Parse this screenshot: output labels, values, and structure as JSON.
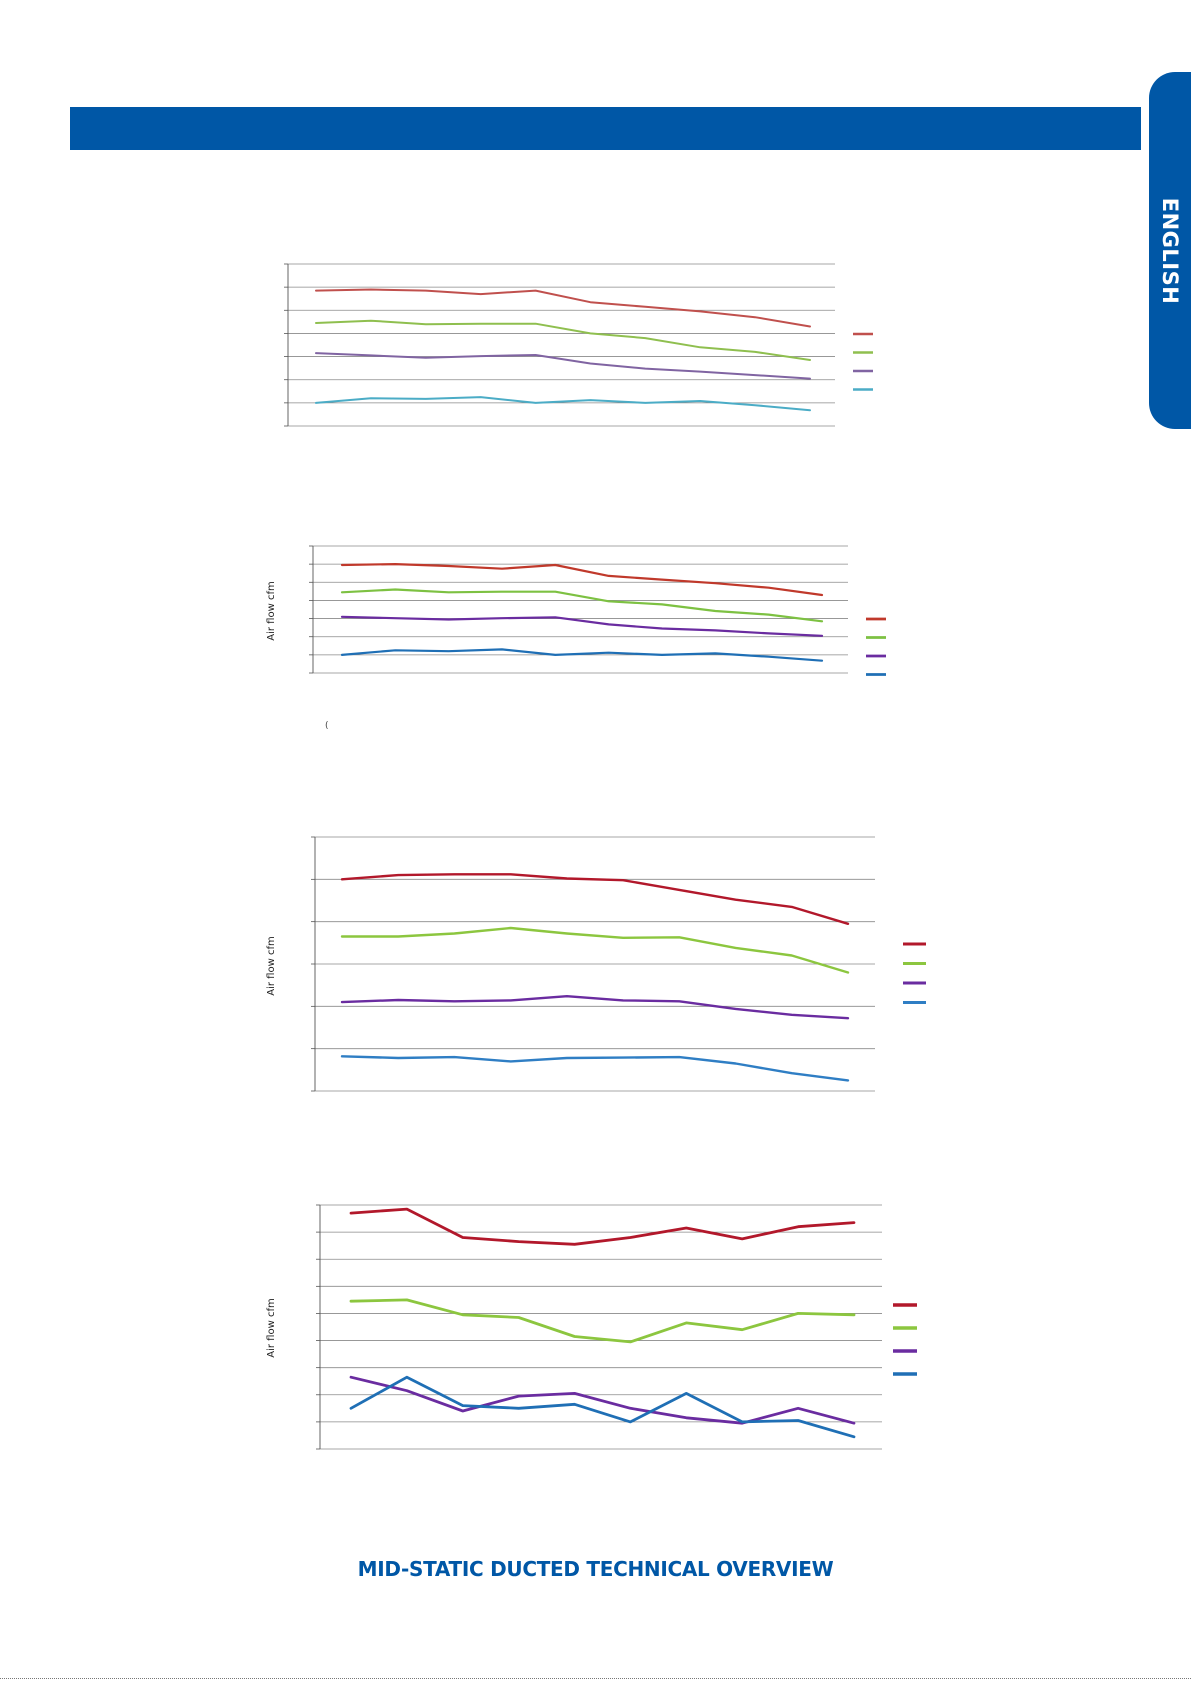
{
  "side_tab": {
    "label": "ENGLISH"
  },
  "footer": {
    "title": "MID-STATIC DUCTED TECHNICAL OVERVIEW"
  },
  "stray_mark": "(",
  "colors": {
    "brand_blue": "#0057a6",
    "series_colors_chart1": [
      "#c0504d",
      "#8fbf4f",
      "#8064a2",
      "#4bacc6"
    ],
    "series_colors_chart2": [
      "#c0392b",
      "#7dc142",
      "#6a2ca0",
      "#1f6fb5"
    ],
    "series_colors_chart3": [
      "#b2182b",
      "#8cc63f",
      "#6a2ca0",
      "#2f7ec4"
    ],
    "series_colors_chart4": [
      "#b2182b",
      "#8cc63f",
      "#6a2ca0",
      "#1f6fb5"
    ]
  },
  "chart_data": [
    {
      "type": "line",
      "title": "",
      "xlabel": "",
      "ylabel": "",
      "ylim": [
        0,
        7
      ],
      "grid": true,
      "legend": "right",
      "x": [
        1,
        2,
        3,
        4,
        5,
        6,
        7,
        8,
        9,
        10
      ],
      "series": [
        {
          "values": [
            5.85,
            5.9,
            5.85,
            5.7,
            5.85,
            5.35,
            5.15,
            4.95,
            4.7,
            4.3
          ]
        },
        {
          "values": [
            4.45,
            4.55,
            4.4,
            4.42,
            4.42,
            4.0,
            3.8,
            3.4,
            3.2,
            2.85
          ]
        },
        {
          "values": [
            3.15,
            3.05,
            2.95,
            3.02,
            3.07,
            2.7,
            2.48,
            2.35,
            2.2,
            2.05
          ]
        },
        {
          "values": [
            1.0,
            1.2,
            1.17,
            1.25,
            1.0,
            1.12,
            1.0,
            1.08,
            0.9,
            0.68
          ]
        }
      ]
    },
    {
      "type": "line",
      "title": "",
      "xlabel": "",
      "ylabel": "Air flow  cfm",
      "ylim": [
        0,
        7
      ],
      "grid": true,
      "legend": "right",
      "x": [
        1,
        2,
        3,
        4,
        5,
        6,
        7,
        8,
        9,
        10
      ],
      "series": [
        {
          "values": [
            5.95,
            6.0,
            5.9,
            5.75,
            5.95,
            5.35,
            5.15,
            4.95,
            4.7,
            4.3
          ]
        },
        {
          "values": [
            4.45,
            4.6,
            4.45,
            4.48,
            4.48,
            3.95,
            3.78,
            3.42,
            3.22,
            2.85
          ]
        },
        {
          "values": [
            3.1,
            3.02,
            2.95,
            3.02,
            3.07,
            2.68,
            2.45,
            2.35,
            2.18,
            2.05
          ]
        },
        {
          "values": [
            1.0,
            1.25,
            1.2,
            1.3,
            1.0,
            1.12,
            1.0,
            1.08,
            0.9,
            0.68
          ]
        }
      ]
    },
    {
      "type": "line",
      "title": "",
      "xlabel": "",
      "ylabel": "Air flow  cfm",
      "ylim": [
        0,
        6
      ],
      "grid": true,
      "legend": "right",
      "x": [
        1,
        2,
        3,
        4,
        5,
        6,
        7,
        8,
        9,
        10
      ],
      "series": [
        {
          "values": [
            5.0,
            5.1,
            5.12,
            5.12,
            5.02,
            4.98,
            4.75,
            4.52,
            4.35,
            3.95
          ]
        },
        {
          "values": [
            3.65,
            3.65,
            3.72,
            3.85,
            3.72,
            3.62,
            3.63,
            3.38,
            3.2,
            2.8
          ]
        },
        {
          "values": [
            2.1,
            2.15,
            2.12,
            2.14,
            2.24,
            2.14,
            2.12,
            1.94,
            1.8,
            1.72
          ]
        },
        {
          "values": [
            0.82,
            0.78,
            0.8,
            0.7,
            0.78,
            0.79,
            0.8,
            0.65,
            0.42,
            0.25
          ]
        }
      ]
    },
    {
      "type": "line",
      "title": "",
      "xlabel": "",
      "ylabel": "Air flow  cfm",
      "ylim": [
        0,
        9
      ],
      "grid": true,
      "legend": "right",
      "x": [
        1,
        2,
        3,
        4,
        5,
        6,
        7,
        8,
        9,
        10
      ],
      "series": [
        {
          "values": [
            8.7,
            8.85,
            7.8,
            7.65,
            7.55,
            7.8,
            8.15,
            7.75,
            8.2,
            8.35
          ]
        },
        {
          "values": [
            5.45,
            5.5,
            4.95,
            4.85,
            4.15,
            3.95,
            4.65,
            4.4,
            5.0,
            4.95
          ]
        },
        {
          "values": [
            2.65,
            2.15,
            1.4,
            1.95,
            2.05,
            1.5,
            1.15,
            0.95,
            1.5,
            0.95
          ]
        },
        {
          "values": [
            1.5,
            2.65,
            1.6,
            1.5,
            1.65,
            1.0,
            2.05,
            1.0,
            1.05,
            0.45
          ]
        }
      ]
    }
  ]
}
